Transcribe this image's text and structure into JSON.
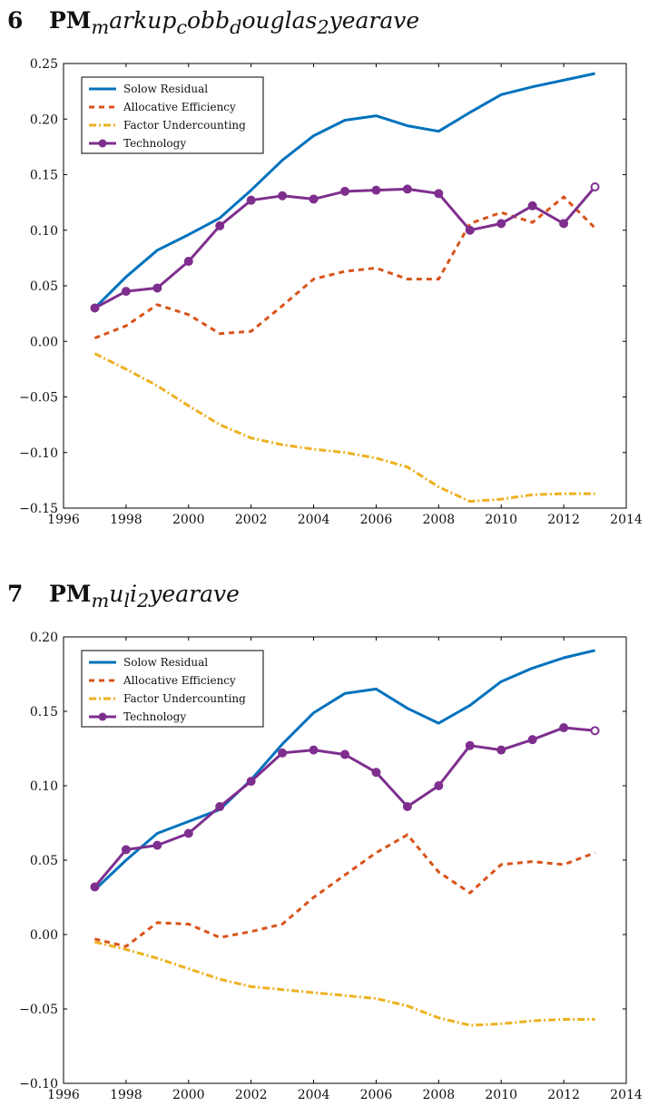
{
  "sections": [
    {
      "number": "6",
      "prefix": "PM",
      "sub": "m",
      "title_rest_parts": [
        {
          "text": "arkup",
          "sub": false
        },
        {
          "text": "c",
          "sub": true
        },
        {
          "text": "obb",
          "sub": false
        },
        {
          "text": "d",
          "sub": true
        },
        {
          "text": "ouglas",
          "sub": false
        },
        {
          "text": "2",
          "sub": true
        },
        {
          "text": "yearave",
          "sub": false
        }
      ]
    },
    {
      "number": "7",
      "prefix": "PM",
      "sub": "m",
      "title_rest_parts": [
        {
          "text": "u",
          "sub": false
        },
        {
          "text": "l",
          "sub": true
        },
        {
          "text": "i",
          "sub": false
        },
        {
          "text": "2",
          "sub": true
        },
        {
          "text": "yearave",
          "sub": false
        }
      ]
    }
  ],
  "colors": {
    "solow": "#0072BD",
    "allocative": "#D95319",
    "factor": "#EDB120",
    "technology": "#7E2F8E"
  },
  "chart_data": [
    {
      "type": "line",
      "title": "PMmarkupcobbdouglas2yearave",
      "xlabel": "",
      "ylabel": "",
      "xlim": [
        1996,
        2014
      ],
      "ylim": [
        -0.15,
        0.25
      ],
      "xticks": [
        1996,
        1998,
        2000,
        2002,
        2004,
        2006,
        2008,
        2010,
        2012,
        2014
      ],
      "yticks": [
        -0.15,
        -0.1,
        -0.05,
        0.0,
        0.05,
        0.1,
        0.15,
        0.2,
        0.25
      ],
      "xtick_labels": [
        "1996",
        "1998",
        "2000",
        "2002",
        "2004",
        "2006",
        "2008",
        "2010",
        "2012",
        "2014"
      ],
      "ytick_labels": [
        "−0.15",
        "−0.10",
        "−0.05",
        "0.00",
        "0.05",
        "0.10",
        "0.15",
        "0.20",
        "0.25"
      ],
      "x": [
        1997,
        1998,
        1999,
        2000,
        2001,
        2002,
        2003,
        2004,
        2005,
        2006,
        2007,
        2008,
        2009,
        2010,
        2011,
        2012,
        2013
      ],
      "legend_position": "top-left",
      "series": [
        {
          "name": "Solow Residual",
          "key": "solow",
          "style": "solid",
          "values": [
            0.03,
            0.058,
            0.082,
            0.096,
            0.111,
            0.136,
            0.163,
            0.185,
            0.199,
            0.203,
            0.194,
            0.189,
            0.206,
            0.222,
            0.229,
            0.235,
            0.241
          ]
        },
        {
          "name": "Allocative Efficiency",
          "key": "allocative",
          "style": "dashed",
          "values": [
            0.003,
            0.014,
            0.033,
            0.024,
            0.007,
            0.009,
            0.032,
            0.056,
            0.063,
            0.066,
            0.056,
            0.056,
            0.106,
            0.116,
            0.107,
            0.13,
            0.102
          ]
        },
        {
          "name": "Factor Undercounting",
          "key": "factor",
          "style": "dashdot",
          "values": [
            -0.011,
            -0.025,
            -0.04,
            -0.058,
            -0.075,
            -0.087,
            -0.093,
            -0.097,
            -0.1,
            -0.105,
            -0.113,
            -0.131,
            -0.144,
            -0.142,
            -0.138,
            -0.137,
            -0.137
          ]
        },
        {
          "name": "Technology",
          "key": "technology",
          "style": "markers",
          "values": [
            0.03,
            0.045,
            0.048,
            0.072,
            0.104,
            0.127,
            0.131,
            0.128,
            0.135,
            0.136,
            0.137,
            0.133,
            0.1,
            0.106,
            0.122,
            0.106,
            0.139
          ]
        }
      ]
    },
    {
      "type": "line",
      "title": "PMmuli2yearave",
      "xlabel": "",
      "ylabel": "",
      "xlim": [
        1996,
        2014
      ],
      "ylim": [
        -0.1,
        0.2
      ],
      "xticks": [
        1996,
        1998,
        2000,
        2002,
        2004,
        2006,
        2008,
        2010,
        2012,
        2014
      ],
      "yticks": [
        -0.1,
        -0.05,
        0.0,
        0.05,
        0.1,
        0.15,
        0.2
      ],
      "xtick_labels": [
        "1996",
        "1998",
        "2000",
        "2002",
        "2004",
        "2006",
        "2008",
        "2010",
        "2012",
        "2014"
      ],
      "ytick_labels": [
        "−0.10",
        "−0.05",
        "0.00",
        "0.05",
        "0.10",
        "0.15",
        "0.20"
      ],
      "x": [
        1997,
        1998,
        1999,
        2000,
        2001,
        2002,
        2003,
        2004,
        2005,
        2006,
        2007,
        2008,
        2009,
        2010,
        2011,
        2012,
        2013
      ],
      "legend_position": "top-left",
      "series": [
        {
          "name": "Solow Residual",
          "key": "solow",
          "style": "solid",
          "values": [
            0.03,
            0.05,
            0.068,
            0.076,
            0.084,
            0.104,
            0.128,
            0.149,
            0.162,
            0.165,
            0.152,
            0.142,
            0.154,
            0.17,
            0.179,
            0.186,
            0.191
          ]
        },
        {
          "name": "Allocative Efficiency",
          "key": "allocative",
          "style": "dashed",
          "values": [
            -0.003,
            -0.008,
            0.008,
            0.007,
            -0.002,
            0.002,
            0.007,
            0.025,
            0.04,
            0.055,
            0.067,
            0.042,
            0.028,
            0.047,
            0.049,
            0.047,
            0.055
          ]
        },
        {
          "name": "Factor Undercounting",
          "key": "factor",
          "style": "dashdot",
          "values": [
            -0.005,
            -0.01,
            -0.016,
            -0.023,
            -0.03,
            -0.035,
            -0.037,
            -0.039,
            -0.041,
            -0.043,
            -0.048,
            -0.056,
            -0.061,
            -0.06,
            -0.058,
            -0.057,
            -0.057
          ]
        },
        {
          "name": "Technology",
          "key": "technology",
          "style": "markers",
          "values": [
            0.032,
            0.057,
            0.06,
            0.068,
            0.086,
            0.103,
            0.122,
            0.124,
            0.121,
            0.109,
            0.086,
            0.1,
            0.127,
            0.124,
            0.131,
            0.139,
            0.137
          ]
        }
      ]
    }
  ]
}
